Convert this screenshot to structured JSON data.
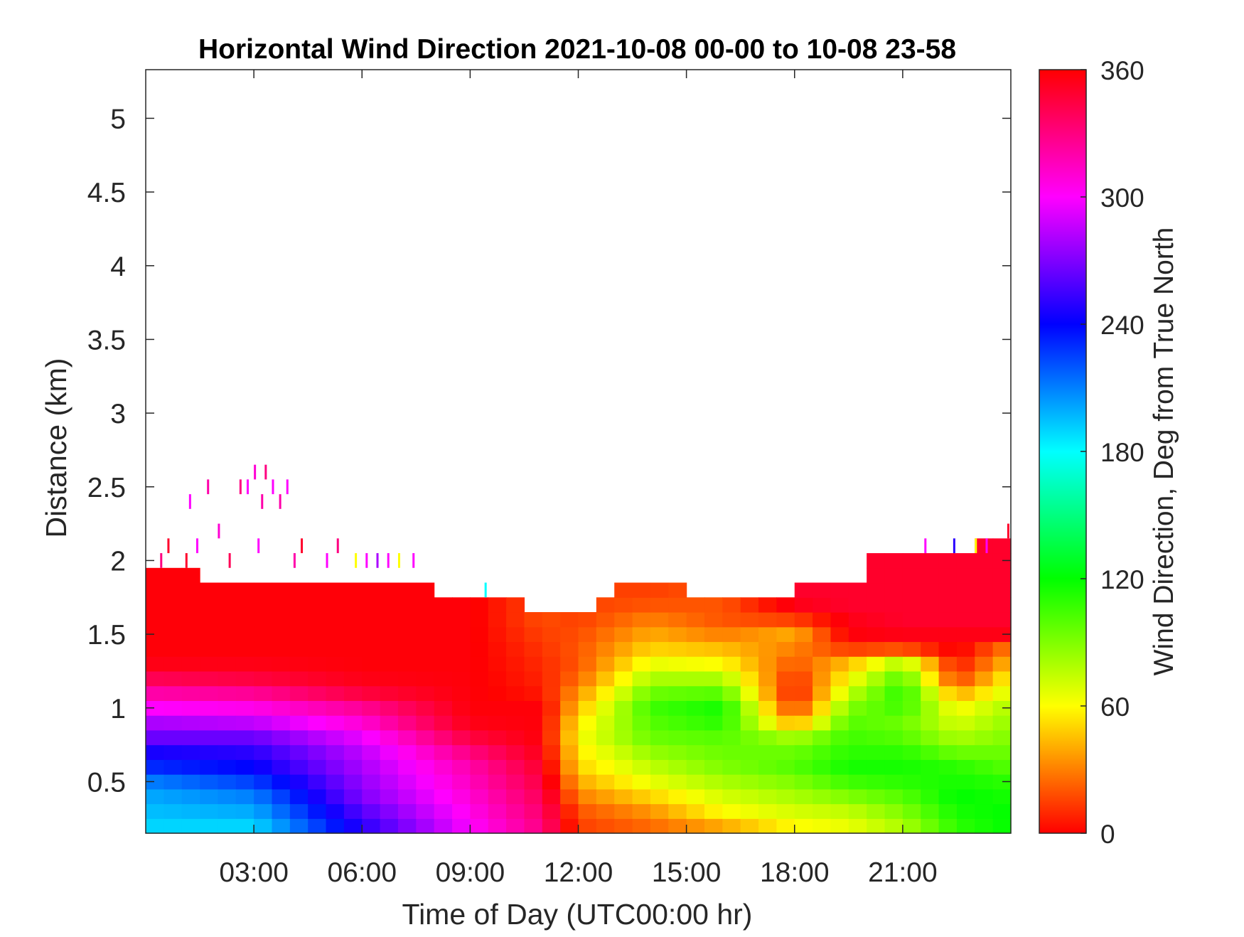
{
  "chart_data": {
    "type": "heatmap",
    "title": "Horizontal Wind Direction 2021-10-08 00-00 to 10-08 23-58",
    "xlabel": "Time of Day (UTC00:00 hr)",
    "ylabel": "Distance (km)",
    "x_unit": "hours UTC",
    "x_range": [
      0,
      24
    ],
    "x_ticks": [
      {
        "value": 3,
        "label": "03:00"
      },
      {
        "value": 6,
        "label": "06:00"
      },
      {
        "value": 9,
        "label": "09:00"
      },
      {
        "value": 12,
        "label": "12:00"
      },
      {
        "value": 15,
        "label": "15:00"
      },
      {
        "value": 18,
        "label": "18:00"
      },
      {
        "value": 21,
        "label": "21:00"
      }
    ],
    "y_range": [
      0.15,
      5.33
    ],
    "y_ticks": [
      {
        "value": 0.5,
        "label": "0.5"
      },
      {
        "value": 1,
        "label": "1"
      },
      {
        "value": 1.5,
        "label": "1.5"
      },
      {
        "value": 2,
        "label": "2"
      },
      {
        "value": 2.5,
        "label": "2.5"
      },
      {
        "value": 3,
        "label": "3"
      },
      {
        "value": 3.5,
        "label": "3.5"
      },
      {
        "value": 4,
        "label": "4"
      },
      {
        "value": 4.5,
        "label": "4.5"
      },
      {
        "value": 5,
        "label": "5"
      }
    ],
    "colorbar": {
      "label": "Wind Direction, Deg from True North",
      "range": [
        0,
        360
      ],
      "ticks": [
        {
          "value": 0,
          "label": "0"
        },
        {
          "value": 60,
          "label": "60"
        },
        {
          "value": 120,
          "label": "120"
        },
        {
          "value": 180,
          "label": "180"
        },
        {
          "value": 240,
          "label": "240"
        },
        {
          "value": 300,
          "label": "300"
        },
        {
          "value": 360,
          "label": "360"
        }
      ],
      "colormap": "hsv",
      "colors": [
        "#ff0000",
        "#ffff00",
        "#00ff00",
        "#00ffff",
        "#0000ff",
        "#ff00ff",
        "#ff0000"
      ]
    },
    "x": [
      0.0,
      0.5,
      1.0,
      1.5,
      2.0,
      2.5,
      3.0,
      3.5,
      4.0,
      4.5,
      5.0,
      5.5,
      6.0,
      6.5,
      7.0,
      7.5,
      8.0,
      8.5,
      9.0,
      9.5,
      10.0,
      10.5,
      11.0,
      11.5,
      12.0,
      12.5,
      13.0,
      13.5,
      14.0,
      14.5,
      15.0,
      15.5,
      16.0,
      16.5,
      17.0,
      17.5,
      18.0,
      18.5,
      19.0,
      19.5,
      20.0,
      20.5,
      21.0,
      21.5,
      22.0,
      22.5,
      23.0,
      23.5
    ],
    "x_step": 0.5,
    "y": [
      0.2,
      0.3,
      0.4,
      0.5,
      0.6,
      0.7,
      0.8,
      0.9,
      1.0,
      1.1,
      1.2,
      1.3,
      1.4,
      1.5,
      1.6,
      1.7,
      1.8,
      1.9,
      2.0,
      2.1
    ],
    "y_step": 0.1,
    "top_km": [
      1.9,
      1.9,
      1.9,
      1.8,
      1.8,
      1.8,
      1.8,
      1.8,
      1.8,
      1.8,
      1.8,
      1.8,
      1.8,
      1.8,
      1.8,
      1.8,
      1.7,
      1.7,
      1.7,
      1.7,
      1.7,
      1.6,
      1.6,
      1.6,
      1.6,
      1.7,
      1.8,
      1.8,
      1.8,
      1.8,
      1.7,
      1.7,
      1.7,
      1.7,
      1.7,
      1.7,
      1.8,
      1.8,
      1.8,
      1.8,
      2.0,
      2.0,
      2.0,
      2.0,
      2.0,
      2.0,
      2.1,
      2.1
    ],
    "anchor_times": [
      0,
      3,
      6,
      9,
      11,
      12,
      14,
      16,
      18,
      19.5,
      21,
      22.5,
      24
    ],
    "anchor_profiles": [
      [
        190,
        195,
        200,
        210,
        230,
        245,
        265,
        280,
        300,
        320,
        340,
        355,
        358,
        358,
        358,
        358,
        358,
        358,
        358,
        358
      ],
      [
        190,
        200,
        210,
        225,
        240,
        250,
        265,
        285,
        305,
        325,
        345,
        355,
        358,
        358,
        358,
        358,
        358,
        358,
        358,
        358
      ],
      [
        250,
        260,
        270,
        275,
        280,
        285,
        295,
        310,
        325,
        345,
        355,
        358,
        358,
        358,
        358,
        358,
        358,
        358,
        358,
        358
      ],
      [
        300,
        305,
        310,
        315,
        320,
        330,
        345,
        355,
        358,
        358,
        358,
        358,
        358,
        358,
        358,
        358,
        358,
        358,
        358,
        358
      ],
      [
        330,
        335,
        340,
        345,
        350,
        355,
        358,
        358,
        358,
        5,
        8,
        10,
        12,
        15,
        18,
        18,
        18,
        18,
        18,
        18
      ],
      [
        15,
        20,
        30,
        40,
        50,
        55,
        60,
        55,
        45,
        35,
        25,
        20,
        20,
        18,
        15,
        15,
        15,
        15,
        15,
        15
      ],
      [
        25,
        35,
        50,
        65,
        75,
        85,
        95,
        100,
        105,
        95,
        80,
        65,
        50,
        40,
        30,
        20,
        15,
        15,
        15,
        15
      ],
      [
        40,
        60,
        70,
        80,
        90,
        95,
        100,
        110,
        115,
        100,
        80,
        60,
        45,
        30,
        20,
        20,
        20,
        20,
        20,
        20
      ],
      [
        60,
        70,
        80,
        90,
        100,
        95,
        80,
        40,
        15,
        5,
        10,
        20,
        30,
        40,
        15,
        355,
        350,
        350,
        350,
        350
      ],
      [
        65,
        75,
        90,
        105,
        115,
        110,
        105,
        100,
        90,
        75,
        60,
        45,
        15,
        358,
        355,
        350,
        350,
        350,
        350,
        350
      ],
      [
        80,
        90,
        100,
        110,
        115,
        110,
        100,
        95,
        105,
        110,
        100,
        80,
        20,
        355,
        350,
        350,
        350,
        350,
        350,
        350
      ],
      [
        110,
        115,
        120,
        115,
        110,
        95,
        80,
        70,
        60,
        40,
        15,
        5,
        358,
        355,
        350,
        350,
        350,
        350,
        350,
        350
      ],
      [
        120,
        120,
        115,
        110,
        100,
        95,
        90,
        85,
        80,
        70,
        60,
        45,
        30,
        355,
        350,
        350,
        350,
        350,
        350,
        350
      ]
    ],
    "sparse_points": [
      {
        "x": 0.4,
        "y": 2.0,
        "value": 330
      },
      {
        "x": 0.6,
        "y": 2.1,
        "value": 350
      },
      {
        "x": 1.2,
        "y": 2.4,
        "value": 300
      },
      {
        "x": 1.7,
        "y": 2.5,
        "value": 320
      },
      {
        "x": 2.0,
        "y": 2.2,
        "value": 310
      },
      {
        "x": 2.6,
        "y": 2.5,
        "value": 330
      },
      {
        "x": 2.8,
        "y": 2.5,
        "value": 300
      },
      {
        "x": 3.0,
        "y": 2.6,
        "value": 310
      },
      {
        "x": 3.2,
        "y": 2.4,
        "value": 320
      },
      {
        "x": 3.3,
        "y": 2.6,
        "value": 330
      },
      {
        "x": 3.5,
        "y": 2.5,
        "value": 300
      },
      {
        "x": 3.7,
        "y": 2.4,
        "value": 320
      },
      {
        "x": 3.9,
        "y": 2.5,
        "value": 300
      },
      {
        "x": 1.1,
        "y": 2.0,
        "value": 350
      },
      {
        "x": 1.4,
        "y": 2.1,
        "value": 300
      },
      {
        "x": 2.3,
        "y": 2.0,
        "value": 340
      },
      {
        "x": 3.1,
        "y": 2.1,
        "value": 300
      },
      {
        "x": 4.1,
        "y": 2.0,
        "value": 320
      },
      {
        "x": 4.3,
        "y": 2.1,
        "value": 350
      },
      {
        "x": 5.0,
        "y": 2.0,
        "value": 300
      },
      {
        "x": 5.3,
        "y": 2.1,
        "value": 330
      },
      {
        "x": 5.8,
        "y": 2.0,
        "value": 60
      },
      {
        "x": 6.1,
        "y": 2.0,
        "value": 300
      },
      {
        "x": 6.4,
        "y": 2.0,
        "value": 280
      },
      {
        "x": 6.7,
        "y": 2.0,
        "value": 300
      },
      {
        "x": 7.0,
        "y": 2.0,
        "value": 60
      },
      {
        "x": 7.4,
        "y": 2.0,
        "value": 300
      },
      {
        "x": 9.4,
        "y": 1.8,
        "value": 180
      },
      {
        "x": 21.6,
        "y": 2.1,
        "value": 300
      },
      {
        "x": 22.4,
        "y": 2.1,
        "value": 250
      },
      {
        "x": 23.0,
        "y": 2.1,
        "value": 60
      },
      {
        "x": 23.3,
        "y": 2.1,
        "value": 300
      },
      {
        "x": 23.9,
        "y": 2.2,
        "value": 350
      }
    ]
  }
}
